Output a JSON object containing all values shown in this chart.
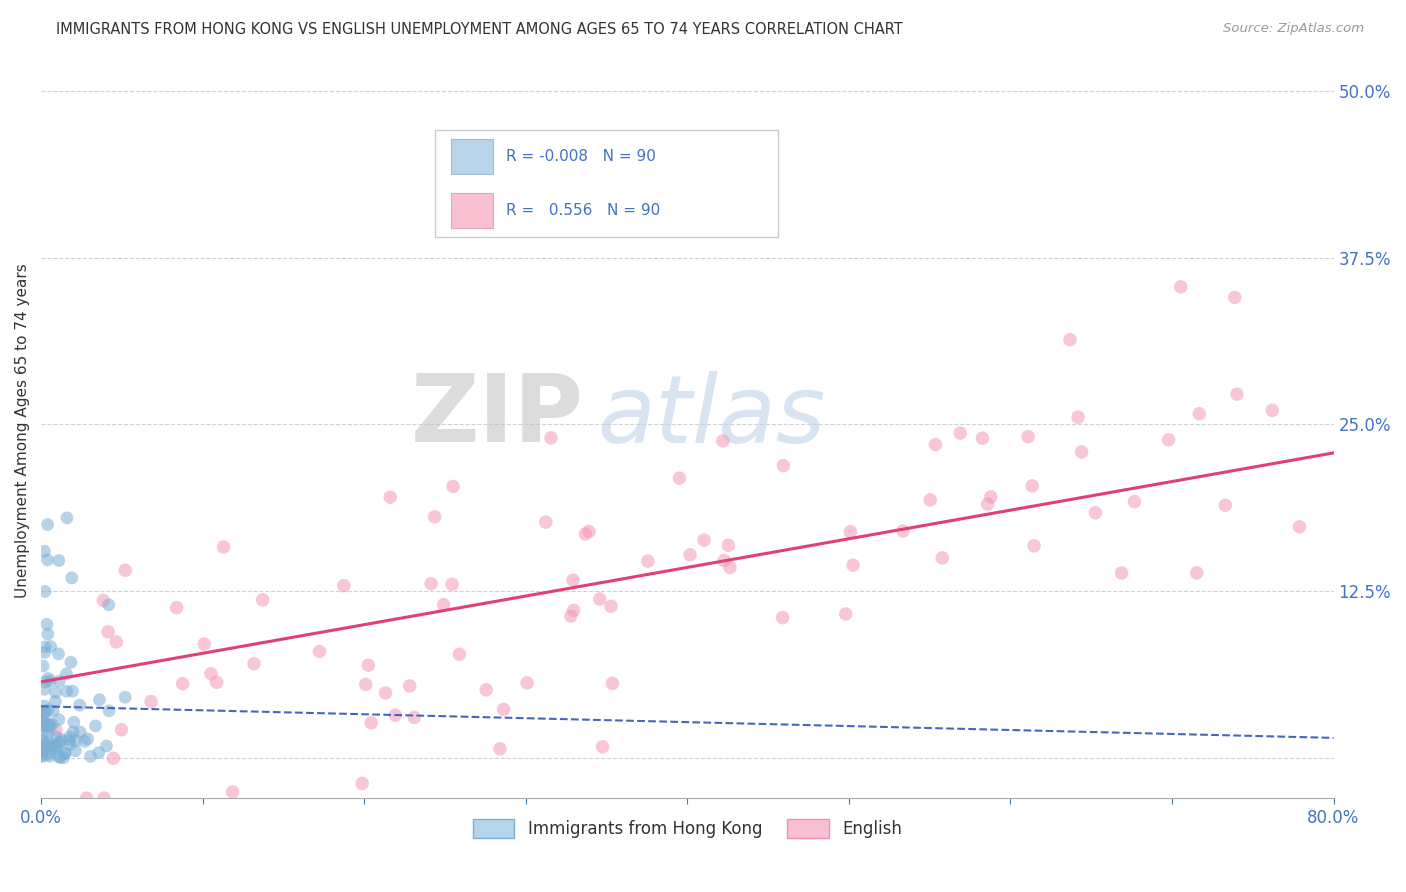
{
  "title": "IMMIGRANTS FROM HONG KONG VS ENGLISH UNEMPLOYMENT AMONG AGES 65 TO 74 YEARS CORRELATION CHART",
  "source": "Source: ZipAtlas.com",
  "ylabel": "Unemployment Among Ages 65 to 74 years",
  "xlim": [
    0,
    0.8
  ],
  "ylim": [
    -0.03,
    0.52
  ],
  "blue_R": -0.008,
  "blue_N": 90,
  "pink_R": 0.556,
  "pink_N": 90,
  "blue_color": "#7bafd4",
  "pink_color": "#f48fb1",
  "blue_edge": "#5a9abf",
  "pink_edge": "#e06090",
  "blue_fill_legend": "#b8d4ea",
  "pink_fill_legend": "#f8c0d0",
  "trend_blue_color": "#4466bb",
  "trend_pink_color": "#e0407a",
  "watermark_zip": "ZIP",
  "watermark_atlas": "atlas",
  "legend_label_blue": "Immigrants from Hong Kong",
  "legend_label_pink": "English",
  "background_color": "#ffffff",
  "grid_color": "#cccccc",
  "blue_seed": 42,
  "pink_seed": 77,
  "tick_color": "#4472c4",
  "title_color": "#333333",
  "source_color": "#999999",
  "ylabel_color": "#333333"
}
